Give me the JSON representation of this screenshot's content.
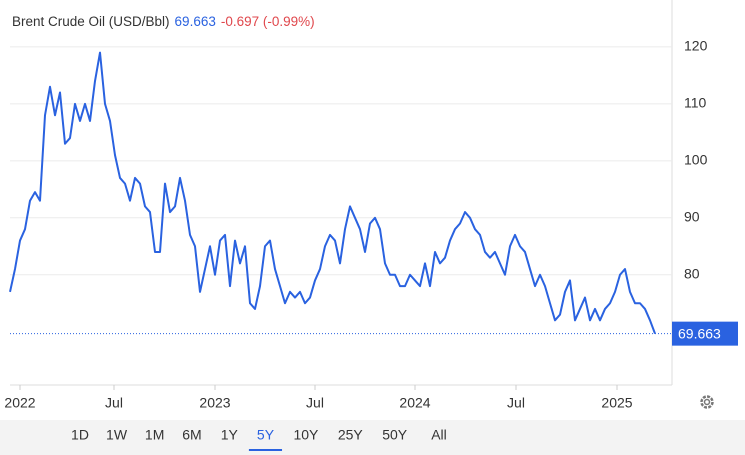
{
  "chart_data": {
    "type": "line",
    "title": "Brent Crude Oil (USD/Bbl)",
    "price": "69.663",
    "change": "-0.697 (-0.99%)",
    "series": [
      {
        "name": "Brent Crude Oil",
        "color": "#2a62e0",
        "values": [
          77,
          81,
          86,
          88,
          93,
          94.5,
          93,
          108,
          113,
          108,
          112,
          103,
          104,
          110,
          107,
          110,
          107,
          114,
          119,
          110,
          107,
          101,
          97,
          96,
          93,
          97,
          96,
          92,
          91,
          84,
          84,
          96,
          91,
          92,
          97,
          93,
          87,
          85,
          77,
          81,
          85,
          80,
          86,
          87,
          78,
          86,
          82,
          85,
          75,
          74,
          78,
          85,
          86,
          81,
          78,
          75,
          77,
          76,
          77,
          75,
          76,
          79,
          81,
          85,
          87,
          86,
          82,
          88,
          92,
          90,
          88,
          84,
          89,
          90,
          88,
          82,
          80,
          80,
          78,
          78,
          80,
          79,
          78,
          82,
          78,
          84,
          82,
          83,
          86,
          88,
          89,
          91,
          90,
          88,
          87,
          84,
          83,
          84,
          82,
          80,
          85,
          87,
          85,
          84,
          81,
          78,
          80,
          78,
          75,
          72,
          73,
          77,
          79,
          72,
          74,
          76,
          72,
          74,
          72,
          74,
          75,
          77,
          80,
          81,
          77,
          75,
          75,
          74,
          72,
          69.663
        ]
      }
    ],
    "xlim": [
      0,
      132
    ],
    "xticks": [
      {
        "value": 2,
        "label": "2022"
      },
      {
        "value": 20.8,
        "label": "Jul"
      },
      {
        "value": 41,
        "label": "2023"
      },
      {
        "value": 61,
        "label": "Jul"
      },
      {
        "value": 81,
        "label": "2024"
      },
      {
        "value": 101.2,
        "label": "Jul"
      },
      {
        "value": 121.4,
        "label": "2025"
      }
    ],
    "ylim": [
      61,
      127
    ],
    "yticks": [
      80,
      90,
      100,
      110,
      120
    ],
    "grid": true,
    "range_buttons": [
      "1D",
      "1W",
      "1M",
      "6M",
      "1Y",
      "5Y",
      "10Y",
      "25Y",
      "50Y",
      "All"
    ],
    "selected_range": 5
  }
}
